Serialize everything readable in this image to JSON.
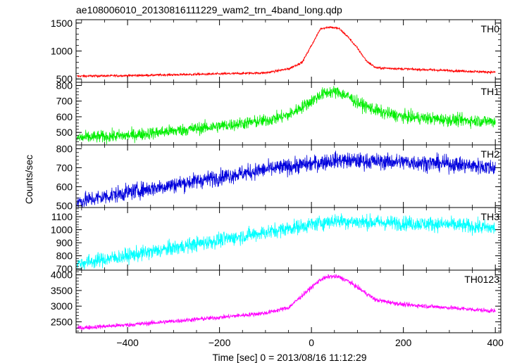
{
  "chart_data": {
    "type": "line",
    "title": "ae108006010_20130816111229_wam2_trn_4band_long.qdp",
    "xlabel": "Time [sec] 0 = 2013/08/16 11:12:29",
    "ylabel": "Counts/sec",
    "xlim": [
      -512,
      412
    ],
    "x_ticks": [
      -400,
      -200,
      0,
      200,
      400
    ],
    "panels": [
      {
        "name": "TH0",
        "color": "#ff0000",
        "ylim": [
          440,
          1560
        ],
        "y_ticks": [
          500,
          1000,
          1500
        ],
        "noise": 15,
        "x": [
          -510,
          -400,
          -300,
          -200,
          -100,
          -50,
          -20,
          0,
          20,
          40,
          60,
          80,
          100,
          120,
          140,
          200,
          300,
          400
        ],
        "values": [
          550,
          560,
          575,
          590,
          610,
          680,
          800,
          1100,
          1400,
          1430,
          1400,
          1250,
          1050,
          820,
          700,
          680,
          650,
          620
        ]
      },
      {
        "name": "TH1",
        "color": "#00ee00",
        "ylim": [
          420,
          820
        ],
        "y_ticks": [
          500,
          600,
          700,
          800
        ],
        "noise": 28,
        "x": [
          -510,
          -400,
          -300,
          -200,
          -100,
          -50,
          0,
          20,
          40,
          60,
          80,
          100,
          150,
          200,
          300,
          400
        ],
        "values": [
          465,
          480,
          510,
          540,
          575,
          610,
          700,
          740,
          760,
          755,
          730,
          690,
          630,
          600,
          580,
          570
        ]
      },
      {
        "name": "TH2",
        "color": "#0000dd",
        "ylim": [
          490,
          820
        ],
        "y_ticks": [
          500,
          600,
          700,
          800
        ],
        "noise": 30,
        "x": [
          -510,
          -400,
          -300,
          -200,
          -100,
          0,
          50,
          100,
          200,
          300,
          400
        ],
        "values": [
          520,
          570,
          610,
          650,
          690,
          720,
          740,
          735,
          730,
          720,
          700
        ]
      },
      {
        "name": "TH3",
        "color": "#00ffff",
        "ylim": [
          690,
          1170
        ],
        "y_ticks": [
          700,
          800,
          900,
          1000,
          1100
        ],
        "noise": 40,
        "x": [
          -510,
          -400,
          -300,
          -200,
          -100,
          0,
          50,
          100,
          200,
          300,
          400
        ],
        "values": [
          740,
          800,
          860,
          920,
          980,
          1040,
          1070,
          1060,
          1050,
          1040,
          1010
        ]
      },
      {
        "name": "TH0123",
        "color": "#ff00ff",
        "ylim": [
          2150,
          4150
        ],
        "y_ticks": [
          2500,
          3000,
          3500,
          4000
        ],
        "noise": 50,
        "x": [
          -510,
          -400,
          -300,
          -200,
          -100,
          -50,
          0,
          20,
          40,
          60,
          80,
          100,
          140,
          200,
          300,
          400
        ],
        "values": [
          2300,
          2400,
          2520,
          2640,
          2780,
          2950,
          3600,
          3850,
          3950,
          3930,
          3800,
          3600,
          3200,
          3050,
          2950,
          2840
        ]
      }
    ],
    "grid": false,
    "legend": "none"
  }
}
